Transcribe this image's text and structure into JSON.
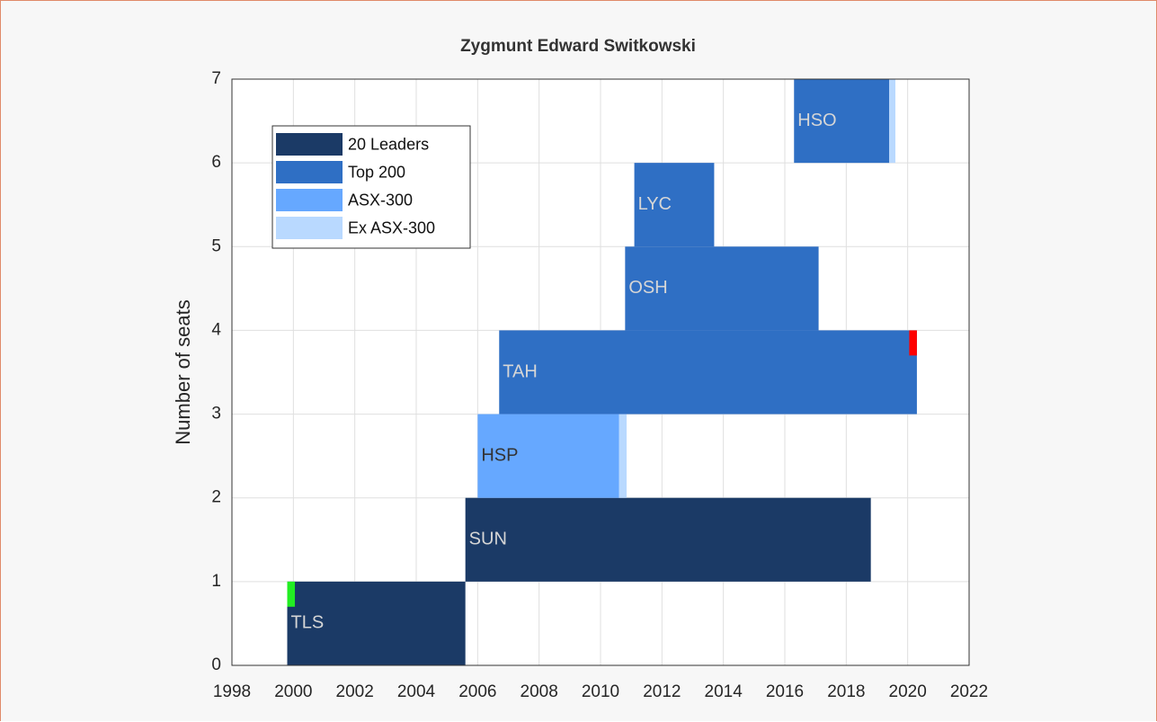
{
  "chart_data": {
    "type": "timeline",
    "title": "Zygmunt Edward Switkowski",
    "ylabel": "Number of seats",
    "xlim": [
      1998,
      2022
    ],
    "xticks": [
      1998,
      2000,
      2002,
      2004,
      2006,
      2008,
      2010,
      2012,
      2014,
      2016,
      2018,
      2020,
      2022
    ],
    "ylim": [
      0,
      7
    ],
    "yticks": [
      0,
      1,
      2,
      3,
      4,
      5,
      6,
      7
    ],
    "grid": true,
    "legend": "upper left",
    "legend_items": [
      {
        "name": "20 Leaders",
        "color": "#1b3a66",
        "label_color": "#d6d6d6"
      },
      {
        "name": "Top 200",
        "color": "#2f6fc4",
        "label_color": "#d6d6d6"
      },
      {
        "name": "ASX-300",
        "color": "#66a8ff",
        "label_color": "#333333"
      },
      {
        "name": "Ex ASX-300",
        "color": "#b9d9ff",
        "label_color": "#333333"
      }
    ],
    "companies": [
      {
        "label": "TLS",
        "seat": 0,
        "segments": [
          {
            "start": 1999.8,
            "end": 2005.6,
            "tier": "20 Leaders"
          }
        ]
      },
      {
        "label": "SUN",
        "seat": 1,
        "segments": [
          {
            "start": 2005.6,
            "end": 2018.8,
            "tier": "20 Leaders"
          }
        ]
      },
      {
        "label": "HSP",
        "seat": 2,
        "segments": [
          {
            "start": 2006.0,
            "end": 2010.6,
            "tier": "ASX-300"
          },
          {
            "start": 2010.6,
            "end": 2010.85,
            "tier": "Ex ASX-300"
          }
        ]
      },
      {
        "label": "TAH",
        "seat": 3,
        "segments": [
          {
            "start": 2006.7,
            "end": 2020.3,
            "tier": "Top 200"
          }
        ]
      },
      {
        "label": "OSH",
        "seat": 4,
        "segments": [
          {
            "start": 2010.8,
            "end": 2017.1,
            "tier": "Top 200"
          }
        ]
      },
      {
        "label": "LYC",
        "seat": 5,
        "segments": [
          {
            "start": 2011.1,
            "end": 2013.7,
            "tier": "Top 200"
          }
        ]
      },
      {
        "label": "HSO",
        "seat": 6,
        "segments": [
          {
            "start": 2016.3,
            "end": 2019.4,
            "tier": "Top 200"
          },
          {
            "start": 2019.4,
            "end": 2019.6,
            "tier": "Ex ASX-300"
          }
        ]
      }
    ],
    "markers": [
      {
        "start": 1999.8,
        "end": 2000.05,
        "seat_from": 0.7,
        "seat_to": 1,
        "color": "#22ee22"
      },
      {
        "start": 2020.05,
        "end": 2020.3,
        "seat_from": 3.7,
        "seat_to": 4,
        "color": "#ff0000"
      }
    ]
  }
}
